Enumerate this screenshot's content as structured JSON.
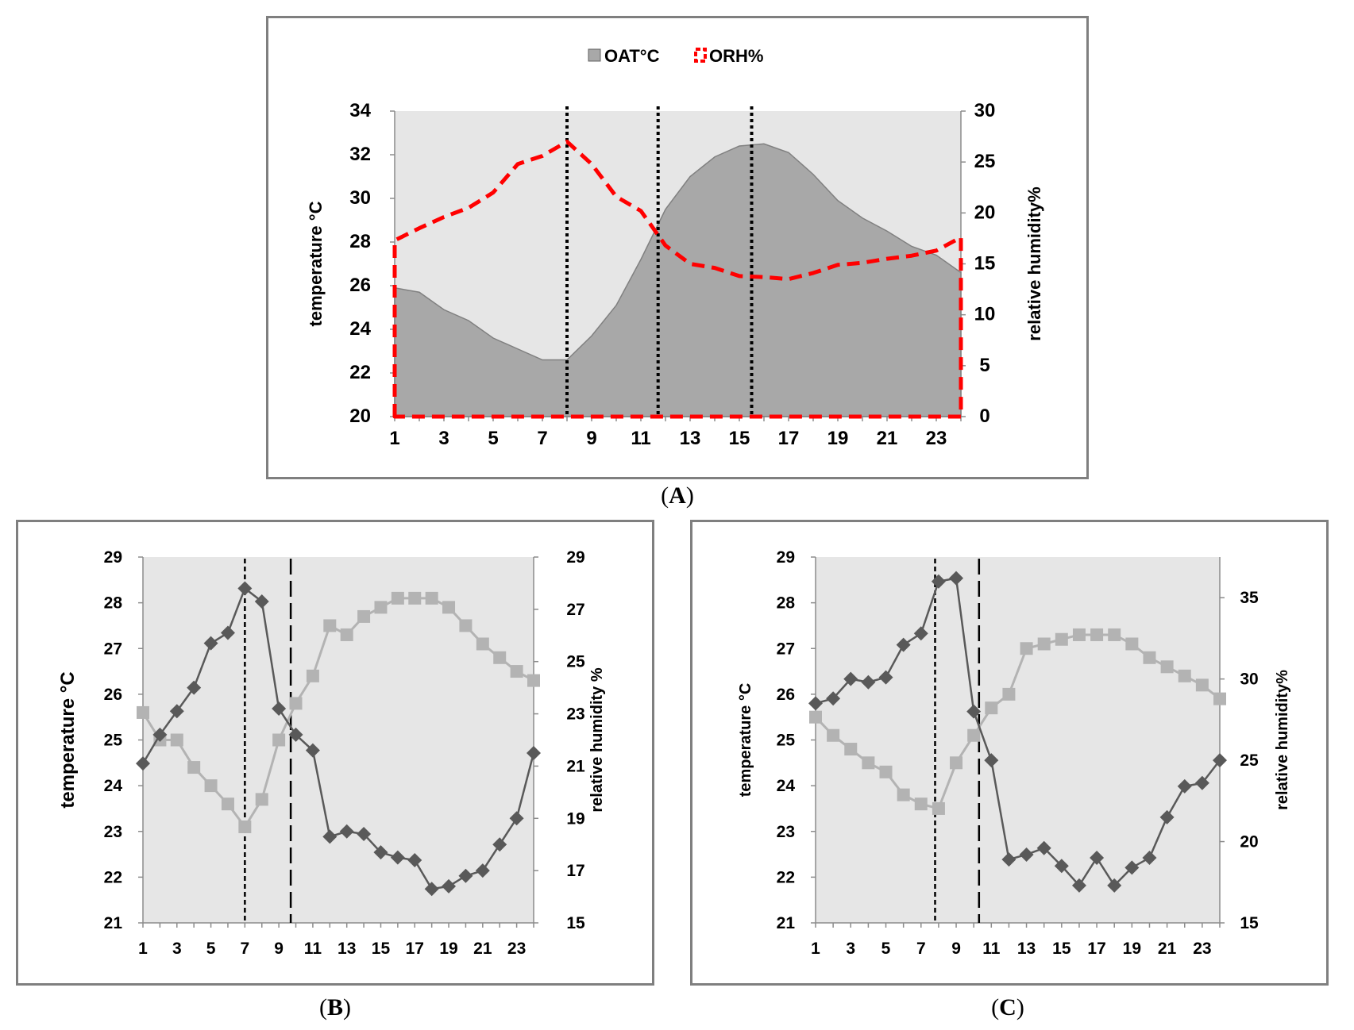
{
  "chart_data": [
    {
      "id": "A",
      "type": "area",
      "caption_letter": "A",
      "legend": [
        {
          "label": "OAT°C",
          "style": "gray-area"
        },
        {
          "label": "ORH%",
          "style": "red-dashed"
        }
      ],
      "ylabel": "temperature °C",
      "y2label": "relative humidity%",
      "ylim": [
        20,
        34
      ],
      "y2lim": [
        0,
        30
      ],
      "yticks": [
        "20",
        "22",
        "24",
        "26",
        "28",
        "30",
        "32",
        "34"
      ],
      "y2ticks": [
        "0",
        "5",
        "10",
        "15",
        "20",
        "25",
        "30"
      ],
      "xticks": [
        "1",
        "3",
        "5",
        "7",
        "9",
        "11",
        "13",
        "15",
        "17",
        "19",
        "21",
        "23"
      ],
      "x": [
        1,
        2,
        3,
        4,
        5,
        6,
        7,
        8,
        9,
        10,
        11,
        12,
        13,
        14,
        15,
        16,
        17,
        18,
        19,
        20,
        21,
        22,
        23,
        24
      ],
      "series": [
        {
          "name": "OAT°C",
          "axis": "left",
          "values": [
            25.9,
            25.7,
            24.9,
            24.4,
            23.6,
            23.1,
            22.6,
            22.6,
            23.7,
            25.1,
            27.2,
            29.5,
            31.0,
            31.9,
            32.4,
            32.5,
            32.1,
            31.1,
            29.9,
            29.1,
            28.5,
            27.8,
            27.4,
            26.6
          ]
        },
        {
          "name": "ORH%",
          "axis": "right",
          "values": [
            17.3,
            18.5,
            19.6,
            20.5,
            22.0,
            24.8,
            25.6,
            27.0,
            24.8,
            21.6,
            20.2,
            16.8,
            15.0,
            14.6,
            13.8,
            13.7,
            13.5,
            14.1,
            14.9,
            15.1,
            15.5,
            15.8,
            16.3,
            17.6
          ]
        }
      ],
      "vlines": [
        8,
        11.7,
        15.5
      ],
      "colors": {
        "area": "#a8a8a8",
        "area_edge": "#808080",
        "rh": "#ff0000",
        "plot_bg": "#e6e6e6"
      }
    },
    {
      "id": "B",
      "type": "line",
      "caption_letter": "B",
      "ylabel": "temperature °C",
      "y2label": "relative humidity %",
      "ylim": [
        21,
        29
      ],
      "y2lim": [
        15,
        29
      ],
      "yticks": [
        "21",
        "22",
        "23",
        "24",
        "25",
        "26",
        "27",
        "28",
        "29"
      ],
      "y2ticks": [
        "15",
        "17",
        "19",
        "21",
        "23",
        "25",
        "27",
        "29"
      ],
      "xticks": [
        "1",
        "3",
        "5",
        "7",
        "9",
        "11",
        "13",
        "15",
        "17",
        "19",
        "21",
        "23"
      ],
      "x": [
        1,
        2,
        3,
        4,
        5,
        6,
        7,
        8,
        9,
        10,
        11,
        12,
        13,
        14,
        15,
        16,
        17,
        18,
        19,
        20,
        21,
        22,
        23,
        24
      ],
      "series": [
        {
          "name": "temperature",
          "axis": "left",
          "marker": "square",
          "values": [
            25.6,
            25.0,
            25.0,
            24.4,
            24.0,
            23.6,
            23.1,
            23.7,
            25.0,
            25.8,
            26.4,
            27.5,
            27.3,
            27.7,
            27.9,
            28.1,
            28.1,
            28.1,
            27.9,
            27.5,
            27.1,
            26.8,
            26.5,
            26.3
          ]
        },
        {
          "name": "relative humidity",
          "axis": "right",
          "marker": "diamond",
          "values": [
            21.1,
            22.2,
            23.1,
            24.0,
            25.7,
            26.1,
            27.8,
            27.3,
            23.2,
            22.2,
            21.6,
            18.3,
            18.5,
            18.4,
            17.7,
            17.5,
            17.4,
            16.3,
            16.4,
            16.8,
            17.0,
            18.0,
            19.0,
            21.5
          ]
        }
      ],
      "vlines": [
        {
          "x": 7,
          "style": "short-dash"
        },
        {
          "x": 9.7,
          "style": "long-dash"
        }
      ],
      "colors": {
        "temp": "#b3b3b3",
        "rh": "#595959",
        "plot_bg": "#e6e6e6"
      }
    },
    {
      "id": "C",
      "type": "line",
      "caption_letter": "C",
      "ylabel": "temperature °C",
      "y2label": "relative humidity%",
      "ylim": [
        21,
        29
      ],
      "y2lim": [
        15,
        37.5
      ],
      "yticks": [
        "21",
        "22",
        "23",
        "24",
        "25",
        "26",
        "27",
        "28",
        "29"
      ],
      "y2ticks": [
        "15",
        "20",
        "25",
        "30",
        "35"
      ],
      "xticks": [
        "1",
        "3",
        "5",
        "7",
        "9",
        "11",
        "13",
        "15",
        "17",
        "19",
        "21",
        "23"
      ],
      "x": [
        1,
        2,
        3,
        4,
        5,
        6,
        7,
        8,
        9,
        10,
        11,
        12,
        13,
        14,
        15,
        16,
        17,
        18,
        19,
        20,
        21,
        22,
        23,
        24
      ],
      "series": [
        {
          "name": "temperature",
          "axis": "left",
          "marker": "square",
          "values": [
            25.5,
            25.1,
            24.8,
            24.5,
            24.3,
            23.8,
            23.6,
            23.5,
            24.5,
            25.1,
            25.7,
            26.0,
            27.0,
            27.1,
            27.2,
            27.3,
            27.3,
            27.3,
            27.1,
            26.8,
            26.6,
            26.4,
            26.2,
            25.9
          ]
        },
        {
          "name": "relative humidity",
          "axis": "right",
          "marker": "diamond",
          "values": [
            28.5,
            28.8,
            30.0,
            29.8,
            30.1,
            32.1,
            32.8,
            36.0,
            36.2,
            28.0,
            25.0,
            18.9,
            19.2,
            19.6,
            18.5,
            17.3,
            19.0,
            17.3,
            18.4,
            19.0,
            21.5,
            23.4,
            23.6,
            25.0
          ]
        }
      ],
      "vlines": [
        {
          "x": 7.8,
          "style": "short-dash"
        },
        {
          "x": 10.3,
          "style": "long-dash"
        }
      ],
      "colors": {
        "temp": "#b3b3b3",
        "rh": "#595959",
        "plot_bg": "#e6e6e6"
      }
    }
  ]
}
